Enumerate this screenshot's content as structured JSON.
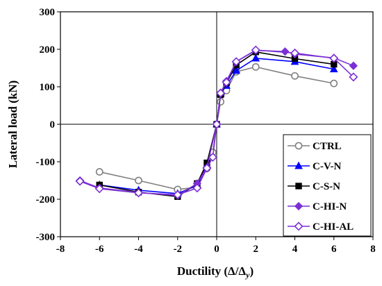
{
  "chart_data": {
    "type": "line",
    "xlabel": "Ductility (Δ/Δ",
    "xlabel_sub": "y",
    "xlabel_close": ")",
    "ylabel": "Lateral load (kN)",
    "xlim": [
      -8,
      8
    ],
    "ylim": [
      -300,
      300
    ],
    "xticks": [
      -8,
      -6,
      -4,
      -2,
      0,
      2,
      4,
      6,
      8
    ],
    "yticks": [
      -300,
      -200,
      -100,
      0,
      100,
      200,
      300
    ],
    "xtick_labels": [
      "-8",
      "-6",
      "-4",
      "-2",
      "0",
      "2",
      "4",
      "6",
      "8"
    ],
    "ytick_labels": [
      "-300",
      "-200",
      "-100",
      "0",
      "100",
      "200",
      "300"
    ],
    "grid": false,
    "legend_position": "lower-right",
    "series": [
      {
        "name": "CTRL",
        "color": "#808080",
        "marker": "circle-open",
        "x": [
          -6,
          -4,
          -2,
          -1,
          -0.5,
          -0.2,
          0,
          0.2,
          0.5,
          1,
          2,
          4,
          6
        ],
        "y": [
          -127,
          -150,
          -174,
          -168,
          -118,
          -75,
          0,
          60,
          90,
          140,
          153,
          129,
          109
        ]
      },
      {
        "name": "C-V-N",
        "color": "#0000ff",
        "marker": "triangle",
        "x": [
          -6,
          -4,
          -2,
          -1,
          -0.5,
          0,
          0.2,
          0.5,
          1,
          2,
          4,
          6
        ],
        "y": [
          -162,
          -176,
          -185,
          -163,
          -110,
          0,
          82,
          103,
          143,
          176,
          167,
          147
        ]
      },
      {
        "name": "C-S-N",
        "color": "#000000",
        "marker": "square",
        "x": [
          -6,
          -4,
          -2,
          -1,
          -0.5,
          0,
          0.2,
          0.5,
          1,
          2,
          4,
          6
        ],
        "y": [
          -162,
          -181,
          -193,
          -158,
          -103,
          0,
          79,
          110,
          158,
          193,
          175,
          160
        ]
      },
      {
        "name": "C-HI-N",
        "color": "#7b2fd4",
        "marker": "diamond",
        "x": [
          -7,
          -6,
          -4,
          -2,
          -1,
          -0.5,
          0,
          0.2,
          0.5,
          1,
          2,
          3.5,
          4,
          6,
          7
        ],
        "y": [
          -150,
          -170,
          -182,
          -190,
          -158,
          -115,
          0,
          84,
          115,
          167,
          197,
          194,
          187,
          177,
          156
        ]
      },
      {
        "name": "C-HI-AL",
        "color": "#7b2fd4",
        "marker": "diamond-open",
        "x": [
          -7,
          -6,
          -4,
          -2,
          -1,
          -0.5,
          -0.2,
          0,
          0.2,
          0.5,
          1,
          2,
          4,
          6,
          7
        ],
        "y": [
          -152,
          -172,
          -183,
          -188,
          -170,
          -117,
          -88,
          0,
          83,
          112,
          167,
          198,
          190,
          176,
          126
        ]
      }
    ]
  }
}
